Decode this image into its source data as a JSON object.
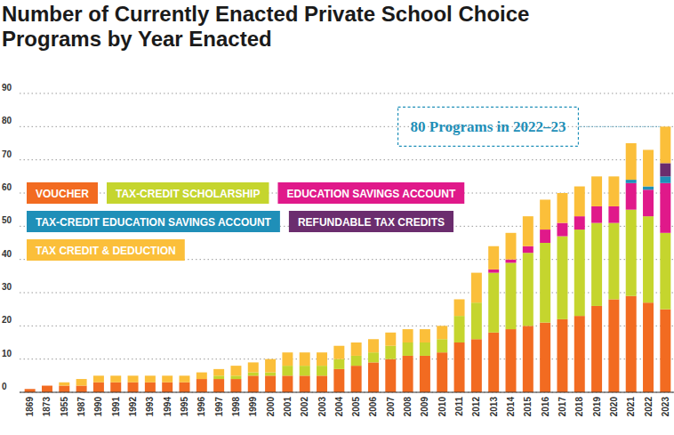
{
  "chart_data": {
    "type": "bar",
    "stacked": true,
    "title": "Number of Currently Enacted Private School Choice Programs by Year Enacted",
    "annotation": "80 Programs in 2022–23",
    "categories": [
      "1869",
      "1873",
      "1955",
      "1987",
      "1990",
      "1991",
      "1992",
      "1993",
      "1994",
      "1995",
      "1996",
      "1997",
      "1998",
      "1999",
      "2000",
      "2001",
      "2002",
      "2003",
      "2004",
      "2005",
      "2006",
      "2007",
      "2008",
      "2009",
      "2010",
      "2011",
      "2012",
      "2013",
      "2014",
      "2015",
      "2016",
      "2017",
      "2018",
      "2019",
      "2020",
      "2021",
      "2022",
      "2023"
    ],
    "series": [
      {
        "name": "VOUCHER",
        "color": "#f26b21",
        "values": [
          1,
          2,
          2,
          2,
          3,
          3,
          3,
          3,
          3,
          3,
          4,
          4,
          4,
          5,
          5,
          5,
          5,
          5,
          7,
          8,
          9,
          10,
          11,
          11,
          12,
          15,
          16,
          18,
          19,
          20,
          21,
          22,
          23,
          26,
          28,
          29,
          27,
          25
        ]
      },
      {
        "name": "TAX-CREDIT SCHOLARSHIP",
        "color": "#c5d52e",
        "values": [
          0,
          0,
          0,
          0,
          0,
          0,
          0,
          0,
          0,
          0,
          0,
          1,
          1,
          1,
          1,
          3,
          3,
          3,
          3,
          3,
          3,
          4,
          4,
          4,
          4,
          8,
          11,
          18,
          20,
          22,
          24,
          25,
          26,
          25,
          23,
          26,
          26,
          23
        ]
      },
      {
        "name": "EDUCATION SAVINGS ACCOUNT",
        "color": "#e0198a",
        "values": [
          0,
          0,
          0,
          0,
          0,
          0,
          0,
          0,
          0,
          0,
          0,
          0,
          0,
          0,
          0,
          0,
          0,
          0,
          0,
          0,
          0,
          0,
          0,
          0,
          0,
          0,
          0,
          1,
          1,
          2,
          4,
          4,
          4,
          5,
          5,
          8,
          8,
          15
        ]
      },
      {
        "name": "TAX-CREDIT EDUCATION SAVINGS ACCOUNT",
        "color": "#1f8fb8",
        "values": [
          0,
          0,
          0,
          0,
          0,
          0,
          0,
          0,
          0,
          0,
          0,
          0,
          0,
          0,
          0,
          0,
          0,
          0,
          0,
          0,
          0,
          0,
          0,
          0,
          0,
          0,
          0,
          0,
          0,
          0,
          0,
          0,
          0,
          0,
          0,
          1,
          1,
          2
        ]
      },
      {
        "name": "REFUNDABLE TAX CREDITS",
        "color": "#6b2d6e",
        "values": [
          0,
          0,
          0,
          0,
          0,
          0,
          0,
          0,
          0,
          0,
          0,
          0,
          0,
          0,
          0,
          0,
          0,
          0,
          0,
          0,
          0,
          0,
          0,
          0,
          0,
          0,
          0,
          0,
          0,
          0,
          0,
          0,
          0,
          0,
          0,
          0,
          0,
          4
        ]
      },
      {
        "name": "TAX CREDIT & DEDUCTION",
        "color": "#fbbf3a",
        "values": [
          0,
          0,
          1,
          2,
          2,
          2,
          2,
          2,
          2,
          2,
          2,
          2,
          3,
          3,
          4,
          4,
          4,
          4,
          4,
          4,
          4,
          4,
          4,
          4,
          4,
          5,
          9,
          7,
          8,
          9,
          9,
          9,
          9,
          9,
          9,
          11,
          11,
          11
        ]
      }
    ],
    "ylim": [
      0,
      90
    ],
    "yticks": [
      0,
      10,
      20,
      30,
      40,
      50,
      60,
      70,
      80,
      90
    ],
    "grid": true,
    "legend": "upper left"
  }
}
